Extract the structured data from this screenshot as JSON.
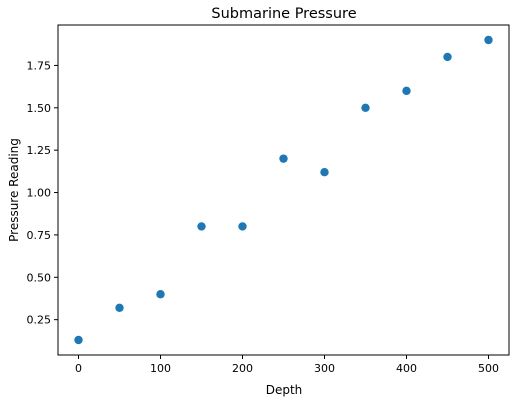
{
  "chart_data": {
    "type": "scatter",
    "title": "Submarine Pressure",
    "xlabel": "Depth",
    "ylabel": "Pressure Reading",
    "x": [
      0,
      50,
      100,
      150,
      200,
      250,
      300,
      350,
      400,
      450,
      500
    ],
    "y": [
      0.13,
      0.32,
      0.4,
      0.8,
      0.8,
      1.2,
      1.12,
      1.5,
      1.6,
      1.8,
      1.9
    ],
    "xlim": [
      -25,
      525
    ],
    "ylim": [
      0.0415,
      1.9885
    ],
    "xticks": [
      0,
      100,
      200,
      300,
      400,
      500
    ],
    "xtick_labels": [
      "0",
      "100",
      "200",
      "300",
      "400",
      "500"
    ],
    "yticks": [
      0.25,
      0.5,
      0.75,
      1.0,
      1.25,
      1.5,
      1.75
    ],
    "ytick_labels": [
      "0.25",
      "0.50",
      "0.75",
      "1.00",
      "1.25",
      "1.50",
      "1.75"
    ],
    "grid": false,
    "marker_color": "#1f77b4"
  }
}
